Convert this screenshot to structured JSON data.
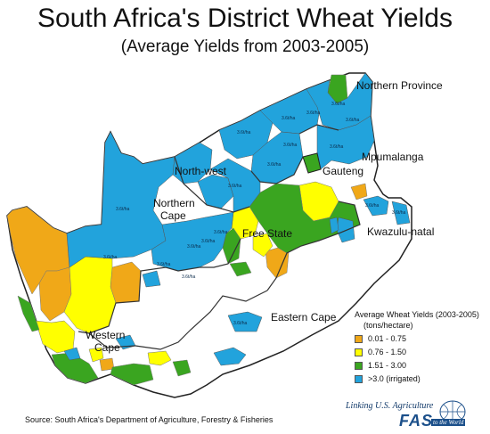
{
  "title": "South Africa's District Wheat Yields",
  "subtitle": "(Average Yields from 2003-2005)",
  "regions": {
    "northern_province": "Northern Province",
    "mpumalanga": "Mpumalanga",
    "gauteng": "Gauteng",
    "north_west": "North-west",
    "northern_cape_1": "Northern",
    "northern_cape_2": "Cape",
    "free_state": "Free State",
    "kwazulu_natal": "Kwazulu-natal",
    "eastern_cape": "Eastern Cape",
    "western_cape_1": "Western",
    "western_cape_2": "Cape"
  },
  "district_label": "3.6t/ha",
  "legend": {
    "title": "Average Wheat Yields (2003-2005)",
    "unit": "(tons/hectare)",
    "items": [
      {
        "label": "0.01 - 0.75",
        "color": "#f0a818"
      },
      {
        "label": "0.76 - 1.50",
        "color": "#ffff00"
      },
      {
        "label": "1.51 - 3.00",
        "color": "#3aa520"
      },
      {
        "label": ">3.0 (irrigated)",
        "color": "#22a3dc"
      }
    ]
  },
  "source": "Source: South Africa's Department of Agriculture, Forestry & Fisheries",
  "logo": {
    "line1": "Linking U.S. Agriculture",
    "line2": "FAS",
    "line3": "to the World"
  }
}
